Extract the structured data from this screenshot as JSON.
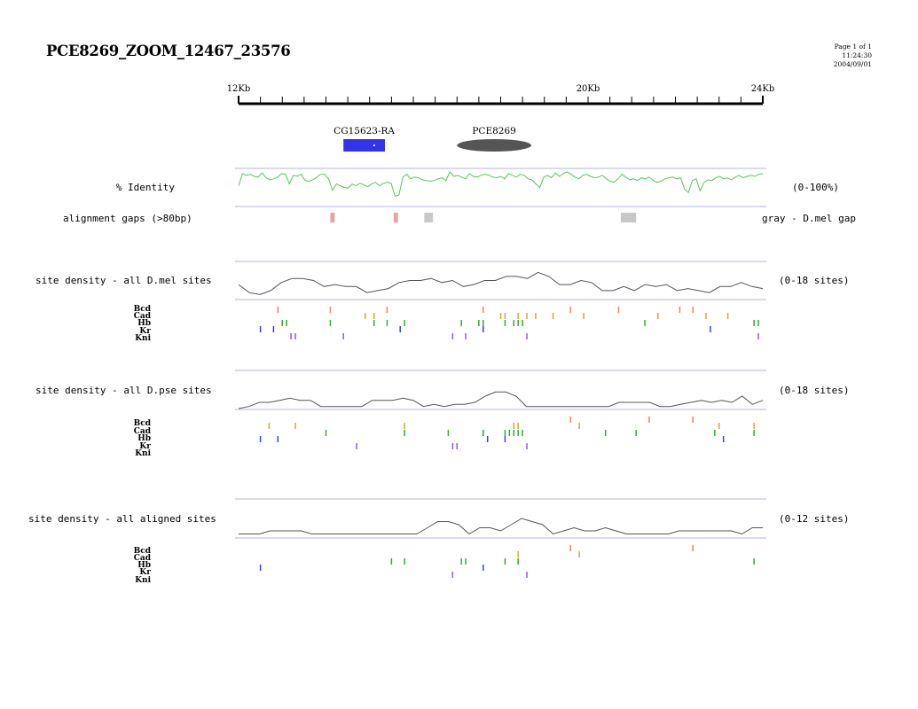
{
  "header": {
    "title": "PCE8269_ZOOM_12467_23576",
    "page": "Page 1 of 1",
    "time": "11:24:30",
    "date": "2004/09/01"
  },
  "ruler": {
    "labels": [
      {
        "pos": 12,
        "text": "12Kb"
      },
      {
        "pos": 20,
        "text": "20Kb"
      },
      {
        "pos": 24,
        "text": "24Kb"
      }
    ],
    "minor_ticks": [
      12.5,
      13,
      13.5,
      14,
      14.5,
      15,
      15.5,
      16,
      16.5,
      17,
      17.5,
      18,
      18.5,
      19,
      19.5,
      20,
      20.5,
      21,
      21.5,
      22,
      22.5,
      23,
      23.5,
      24
    ]
  },
  "features": {
    "gene": {
      "label": "CG15623-RA",
      "start": 14.4,
      "end": 15.35,
      "color": "#3333ee"
    },
    "enhancer": {
      "label": "PCE8269",
      "start": 17.0,
      "end": 18.7,
      "color": "#555555"
    }
  },
  "identity": {
    "label": "% Identity",
    "range": "(0-100%)",
    "color": "#55c855",
    "values": [
      55,
      90,
      85,
      88,
      82,
      80,
      92,
      78,
      72,
      75,
      80,
      90,
      88,
      60,
      85,
      82,
      88,
      70,
      68,
      72,
      80,
      88,
      88,
      75,
      42,
      60,
      55,
      50,
      48,
      60,
      55,
      62,
      58,
      52,
      60,
      65,
      55,
      62,
      65,
      62,
      25,
      28,
      80,
      88,
      75,
      80,
      78,
      72,
      70,
      68,
      70,
      75,
      78,
      70,
      95,
      82,
      85,
      80,
      75,
      90,
      82,
      80,
      85,
      88,
      85,
      80,
      78,
      82,
      75,
      90,
      85,
      80,
      88,
      85,
      75,
      72,
      60,
      50,
      80,
      85,
      78,
      92,
      82,
      90,
      95,
      88,
      80,
      75,
      85,
      88,
      82,
      78,
      80,
      85,
      75,
      68,
      65,
      75,
      88,
      80,
      72,
      75,
      70,
      78,
      75,
      80,
      70,
      65,
      68,
      75,
      78,
      80,
      75,
      78,
      45,
      35,
      70,
      75,
      40,
      65,
      72,
      70,
      78,
      82,
      75,
      78,
      72,
      80,
      85,
      78,
      82,
      85,
      82,
      88,
      90
    ]
  },
  "gaps": {
    "label": "alignment gaps (>80bp)",
    "legend": "gray - D.mel gap",
    "items": [
      {
        "start": 14.1,
        "end": 14.2,
        "type": "pse"
      },
      {
        "start": 15.55,
        "end": 15.65,
        "type": "pse"
      },
      {
        "start": 16.25,
        "end": 16.45,
        "type": "mel"
      },
      {
        "start": 20.75,
        "end": 21.1,
        "type": "mel"
      }
    ]
  },
  "tracks": [
    {
      "label": "site density - all D.mel sites",
      "range": "(0-18 sites)",
      "density": [
        7,
        3,
        2,
        4,
        8,
        10,
        10,
        9,
        6,
        7,
        6,
        6,
        3,
        4,
        5,
        8,
        9,
        9,
        10,
        8,
        9,
        6,
        7,
        9,
        9,
        11,
        11,
        10,
        13,
        11,
        7,
        7,
        9,
        8,
        4,
        4,
        6,
        4,
        7,
        6,
        7,
        4,
        5,
        4,
        3,
        6,
        6,
        8,
        6,
        5
      ],
      "factors": [
        {
          "name": "Bcd",
          "color": "#e8865a",
          "sites": [
            12.9,
            14.1,
            15.4,
            17.6,
            19.6,
            20.7,
            22.1,
            22.4
          ]
        },
        {
          "name": "Cad",
          "color": "#d4aa2a",
          "sites": [
            14.9,
            15.1,
            18.0,
            18.1,
            18.4,
            18.6,
            18.8,
            19.2,
            19.9,
            21.6,
            22.7,
            23.2
          ]
        },
        {
          "name": "Hb",
          "color": "#33aa33",
          "sites": [
            13.0,
            13.1,
            14.1,
            15.1,
            15.4,
            15.8,
            17.1,
            17.5,
            17.6,
            18.1,
            18.3,
            18.4,
            18.5,
            21.3,
            23.8,
            23.9
          ]
        },
        {
          "name": "Kr",
          "color": "#3344cc",
          "sites": [
            12.5,
            12.8,
            15.7,
            17.6,
            22.8
          ]
        },
        {
          "name": "Kni",
          "color": "#9955ee",
          "sites": [
            13.2,
            13.3,
            14.4,
            16.9,
            17.2,
            18.6,
            23.9
          ]
        }
      ]
    },
    {
      "label": "site density - all D.pse sites",
      "range": "(0-18 sites)",
      "density": [
        0,
        1,
        3,
        3,
        4,
        5,
        4,
        4,
        1,
        1,
        1,
        1,
        1,
        4,
        4,
        4,
        5,
        4,
        1,
        2,
        1,
        2,
        2,
        3,
        6,
        8,
        8,
        6,
        1,
        1,
        1,
        1,
        1,
        1,
        1,
        1,
        1,
        3,
        3,
        3,
        3,
        1,
        1,
        2,
        3,
        4,
        3,
        4,
        3,
        6,
        2,
        4
      ],
      "factors": [
        {
          "name": "Bcd",
          "color": "#e8865a",
          "sites": [
            19.6,
            21.4,
            22.4
          ]
        },
        {
          "name": "Cad",
          "color": "#d4aa2a",
          "sites": [
            12.7,
            13.3,
            15.8,
            18.3,
            18.4,
            19.8,
            23.0,
            23.8
          ]
        },
        {
          "name": "Hb",
          "color": "#33aa33",
          "sites": [
            14.0,
            15.8,
            16.8,
            17.6,
            17.6,
            18.1,
            18.2,
            18.3,
            18.4,
            18.5,
            20.4,
            21.1,
            22.9,
            23.8
          ]
        },
        {
          "name": "Kr",
          "color": "#3344cc",
          "sites": [
            12.5,
            12.9,
            17.7,
            18.1,
            23.1
          ]
        },
        {
          "name": "Kni",
          "color": "#9955ee",
          "sites": [
            14.7,
            16.9,
            17.0,
            18.6
          ]
        }
      ]
    },
    {
      "label": "site density - all aligned sites",
      "range": "(0-12 sites)",
      "density": [
        1,
        1,
        1,
        2,
        2,
        2,
        2,
        1,
        1,
        1,
        1,
        1,
        1,
        1,
        1,
        1,
        1,
        1,
        3,
        5,
        5,
        4,
        1,
        3,
        3,
        2,
        4,
        6,
        5,
        4,
        1,
        2,
        3,
        2,
        2,
        3,
        2,
        1,
        1,
        1,
        1,
        1,
        2,
        2,
        2,
        2,
        2,
        2,
        1,
        3,
        3
      ],
      "factors": [
        {
          "name": "Bcd",
          "color": "#e8865a",
          "sites": [
            19.6,
            22.4
          ]
        },
        {
          "name": "Cad",
          "color": "#d4aa2a",
          "sites": [
            18.4,
            19.8
          ]
        },
        {
          "name": "Hb",
          "color": "#33aa33",
          "sites": [
            15.5,
            15.8,
            17.1,
            17.2,
            18.1,
            18.4,
            23.8
          ]
        },
        {
          "name": "Kr",
          "color": "#3344cc",
          "sites": [
            12.5,
            17.6
          ]
        },
        {
          "name": "Kni",
          "color": "#9955ee",
          "sites": [
            16.9,
            18.6
          ]
        }
      ]
    }
  ]
}
